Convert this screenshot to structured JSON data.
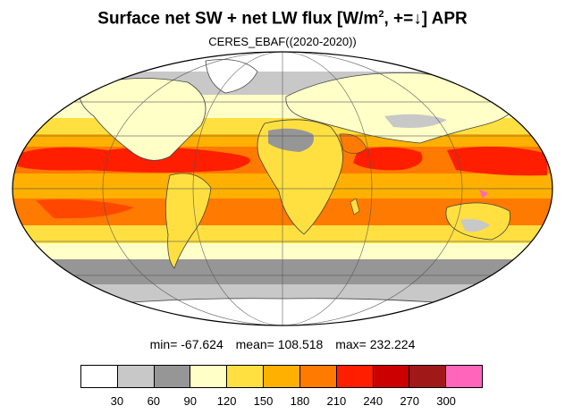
{
  "title": {
    "main": "Surface net SW + net LW flux [W/m",
    "sup": "2",
    "rest": ", +=↓]  APR"
  },
  "subtitle": "CERES_EBAF((2020-2020))",
  "stats": {
    "min": "min= -67.624",
    "mean": "mean= 108.518",
    "max": "max= 232.224"
  },
  "colorbar": {
    "colors": [
      "#ffffff",
      "#c8c8c8",
      "#969696",
      "#ffffc8",
      "#ffe040",
      "#ffb000",
      "#ff7a00",
      "#ff1e00",
      "#cc0000",
      "#a01818",
      "#ff66bb"
    ],
    "labels": [
      "30",
      "60",
      "90",
      "120",
      "150",
      "180",
      "210",
      "240",
      "270",
      "300"
    ]
  },
  "chart_data": {
    "type": "heatmap",
    "projection": "mollweide",
    "units": "W/m2",
    "levels": [
      30,
      60,
      90,
      120,
      150,
      180,
      210,
      240,
      270,
      300
    ],
    "min": -67.624,
    "mean": 108.518,
    "max": 232.224,
    "grid": true
  }
}
